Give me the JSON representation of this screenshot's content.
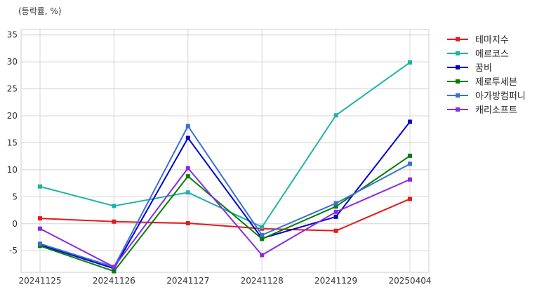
{
  "chart_data": {
    "type": "line",
    "unit_label": "(등락률, %)",
    "title": "",
    "xlabel": "",
    "ylabel": "",
    "categories": [
      "20241125",
      "20241126",
      "20241127",
      "20241128",
      "20241129",
      "20250404"
    ],
    "ylim": [
      -9,
      36
    ],
    "yticks": [
      -5,
      0,
      5,
      10,
      15,
      20,
      25,
      30,
      35
    ],
    "grid": true,
    "legend_position": "right",
    "series": [
      {
        "name": "테마지수",
        "color": "#e41a1c",
        "values": [
          1.0,
          0.4,
          0.1,
          -0.9,
          -1.3,
          4.6
        ]
      },
      {
        "name": "에르코스",
        "color": "#20b2aa",
        "values": [
          6.9,
          3.3,
          5.8,
          -0.6,
          20.1,
          29.9
        ]
      },
      {
        "name": "꿈비",
        "color": "#0000cd",
        "values": [
          -3.9,
          -8.3,
          15.9,
          -2.7,
          1.3,
          18.9
        ]
      },
      {
        "name": "제로투세븐",
        "color": "#008000",
        "values": [
          -4.1,
          -8.8,
          8.8,
          -2.8,
          3.2,
          12.6
        ]
      },
      {
        "name": "아가방컴퍼니",
        "color": "#3a6fd8",
        "values": [
          -3.7,
          -8.0,
          18.1,
          -2.1,
          3.8,
          11.1
        ]
      },
      {
        "name": "캐리소프트",
        "color": "#8a2be2",
        "values": [
          -0.9,
          -8.0,
          10.3,
          -5.8,
          2.2,
          8.2
        ]
      }
    ]
  }
}
